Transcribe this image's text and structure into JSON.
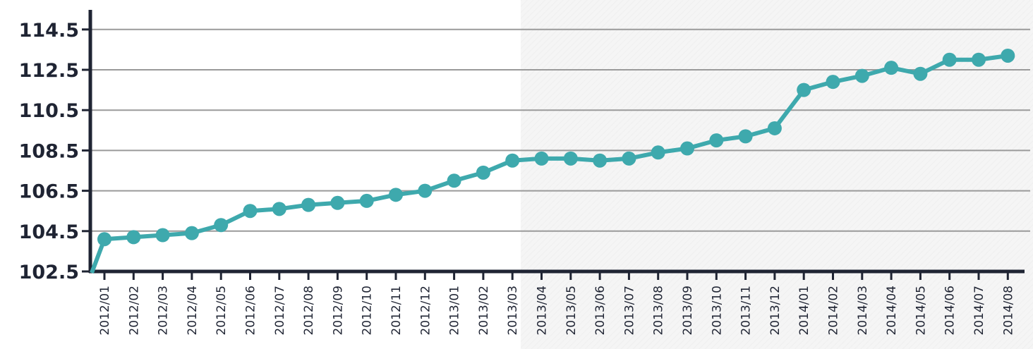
{
  "chart_data": {
    "type": "line",
    "title": "",
    "xlabel": "",
    "ylabel": "",
    "ylim": [
      102.5,
      115.5
    ],
    "yticks": [
      102.5,
      104.5,
      106.5,
      108.5,
      110.5,
      112.5,
      114.5
    ],
    "ytick_labels": [
      "102.5",
      "104.5",
      "106.5",
      "108.5",
      "110.5",
      "112.5",
      "114.5"
    ],
    "grid": true,
    "line_color": "#3ea9ad",
    "axis_color": "#1f2433",
    "categories": [
      "2012/01",
      "2012/02",
      "2012/03",
      "2012/04",
      "2012/05",
      "2012/06",
      "2012/07",
      "2012/08",
      "2012/09",
      "2012/10",
      "2012/11",
      "2012/12",
      "2013/01",
      "2013/02",
      "2013/03",
      "2013/04",
      "2013/05",
      "2013/06",
      "2013/07",
      "2013/08",
      "2013/09",
      "2013/10",
      "2013/11",
      "2013/12",
      "2014/01",
      "2014/02",
      "2014/03",
      "2014/04",
      "2014/05",
      "2014/06",
      "2014/07",
      "2014/08"
    ],
    "series": [
      {
        "values": [
          104.1,
          104.2,
          104.3,
          104.4,
          104.8,
          105.5,
          105.6,
          105.8,
          105.9,
          106.0,
          106.3,
          106.5,
          107.0,
          107.4,
          108.0,
          108.1,
          108.1,
          108.0,
          108.1,
          108.4,
          108.6,
          109.0,
          109.2,
          109.6,
          111.5,
          111.9,
          112.2,
          112.6,
          112.3,
          113.0,
          113.0,
          113.2
        ]
      }
    ]
  }
}
